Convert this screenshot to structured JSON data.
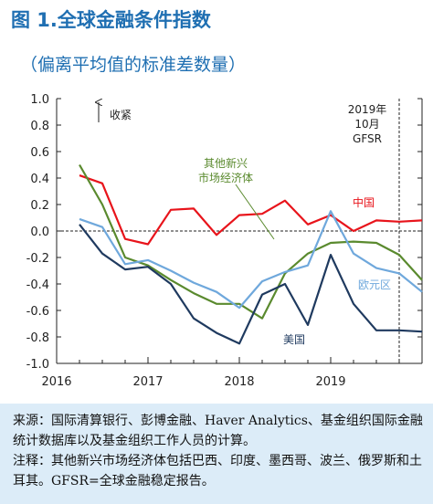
{
  "header": {
    "title": "图 1.全球金融条件指数",
    "subtitle": "（偏离平均值的标准差数量）"
  },
  "chart_data": {
    "type": "line",
    "title": "图 1.全球金融条件指数",
    "subtitle": "（偏离平均值的标准差数量）",
    "ylim": [
      -1.0,
      1.0
    ],
    "yticks": [
      "1.0",
      "0.8",
      "0.6",
      "0.4",
      "0.2",
      "0.0",
      "-0.2",
      "-0.4",
      "-0.6",
      "-0.8",
      "-1.0"
    ],
    "xlim": [
      2016.0,
      2020.0
    ],
    "xticks": [
      "2016",
      "2017",
      "2018",
      "2019"
    ],
    "annotations": {
      "tightening": "收紧",
      "gfsr_line1": "2019年",
      "gfsr_line2": "10月",
      "gfsr_line3": "GFSR"
    },
    "vline_x": 2019.75,
    "series": [
      {
        "name": "中国",
        "color": "#e8141b",
        "x": [
          2016.25,
          2016.5,
          2016.75,
          2017.0,
          2017.25,
          2017.5,
          2017.75,
          2018.0,
          2018.25,
          2018.5,
          2018.75,
          2019.0,
          2019.25,
          2019.5,
          2019.75,
          2020.0
        ],
        "y": [
          0.42,
          0.36,
          -0.06,
          -0.1,
          0.16,
          0.17,
          -0.03,
          0.12,
          0.13,
          0.23,
          0.05,
          0.12,
          0.0,
          0.08,
          0.07,
          0.08
        ]
      },
      {
        "name": "其他新兴市场经济体",
        "color": "#5a8a2e",
        "x": [
          2016.25,
          2016.5,
          2016.75,
          2017.0,
          2017.25,
          2017.5,
          2017.75,
          2018.0,
          2018.25,
          2018.5,
          2018.75,
          2019.0,
          2019.25,
          2019.5,
          2019.75,
          2020.0
        ],
        "y": [
          0.5,
          0.2,
          -0.2,
          -0.26,
          -0.37,
          -0.47,
          -0.55,
          -0.55,
          -0.66,
          -0.32,
          -0.17,
          -0.09,
          -0.08,
          -0.09,
          -0.18,
          -0.37
        ]
      },
      {
        "name": "欧元区",
        "color": "#6fa8dc",
        "x": [
          2016.25,
          2016.5,
          2016.75,
          2017.0,
          2017.25,
          2017.5,
          2017.75,
          2018.0,
          2018.25,
          2018.5,
          2018.75,
          2019.0,
          2019.25,
          2019.5,
          2019.75,
          2020.0
        ],
        "y": [
          0.09,
          0.03,
          -0.25,
          -0.22,
          -0.3,
          -0.39,
          -0.46,
          -0.58,
          -0.38,
          -0.31,
          -0.26,
          0.15,
          -0.17,
          -0.28,
          -0.32,
          -0.46
        ]
      },
      {
        "name": "美国",
        "color": "#1f3a5f",
        "x": [
          2016.25,
          2016.5,
          2016.75,
          2017.0,
          2017.25,
          2017.5,
          2017.75,
          2018.0,
          2018.25,
          2018.5,
          2018.75,
          2019.0,
          2019.25,
          2019.5,
          2019.75,
          2020.0
        ],
        "y": [
          0.05,
          -0.17,
          -0.29,
          -0.27,
          -0.4,
          -0.66,
          -0.77,
          -0.85,
          -0.48,
          -0.4,
          -0.71,
          -0.18,
          -0.55,
          -0.75,
          -0.75,
          -0.76
        ]
      }
    ],
    "series_labels": [
      {
        "name": "中国",
        "text": "中国",
        "color": "#e8141b"
      },
      {
        "name": "其他新兴市场经济体",
        "text1": "其他新兴",
        "text2": "市场经济体",
        "color": "#5a8a2e"
      },
      {
        "name": "欧元区",
        "text": "欧元区",
        "color": "#6fa8dc"
      },
      {
        "name": "美国",
        "text": "美国",
        "color": "#1f3a5f"
      }
    ]
  },
  "notes": {
    "source": "来源：国际清算银行、彭博金融、Haver Analytics、基金组织国际金融统计数据库以及基金组织工作人员的计算。",
    "note": "注释：其他新兴市场经济体包括巴西、印度、墨西哥、波兰、俄罗斯和土耳其。GFSR=全球金融稳定报告。"
  }
}
